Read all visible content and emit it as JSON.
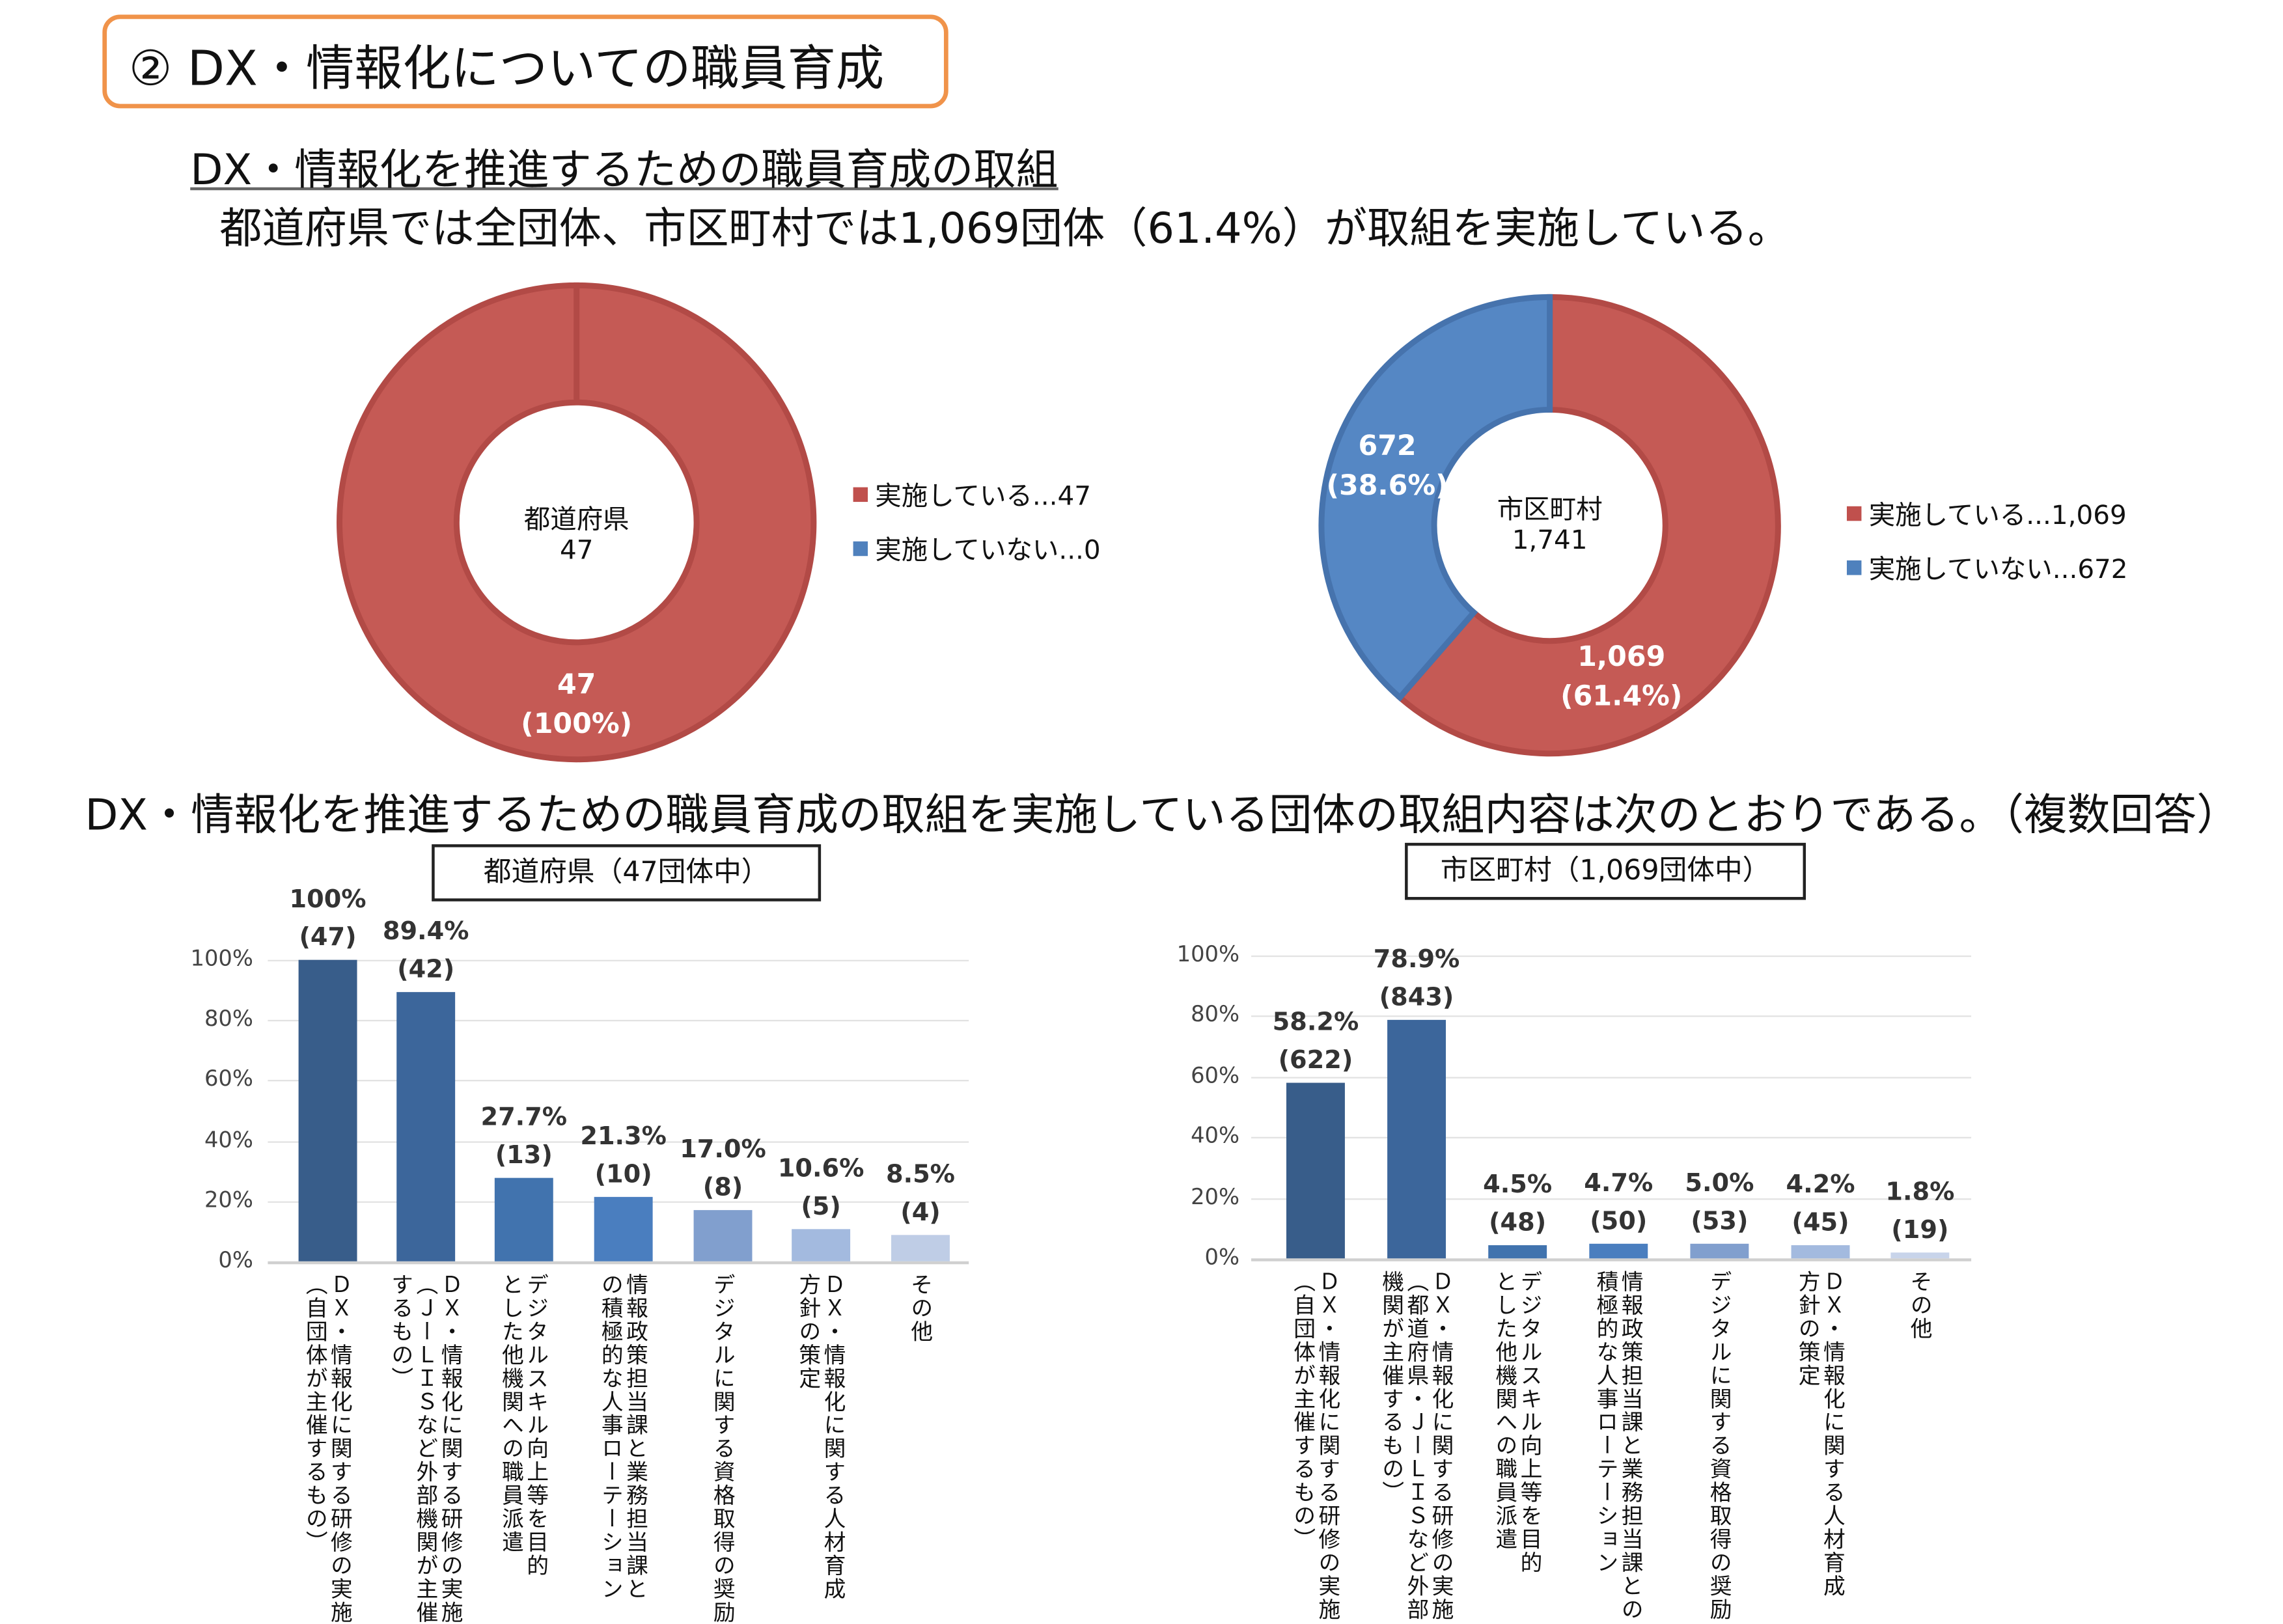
{
  "header": {
    "title": "② DX・情報化についての職員育成",
    "subtitle": "DX・情報化を推進するための職員育成の取組",
    "summary": "都道府県では全団体、市区町村では1,069団体（61.4%）が取組を実施している。",
    "sentence": "DX・情報化を推進するための職員育成の取組を実施している団体の取組内容は次のとおりである。（複数回答）"
  },
  "colors": {
    "accent": "#F0934A",
    "red": "#C0504D",
    "blue": "#4F81BD"
  },
  "chart_data": [
    {
      "type": "pie",
      "subtype": "donut",
      "center_label": "都道府県",
      "center_value": "47",
      "slices": [
        {
          "name": "実施している",
          "value": 47,
          "percent": 100,
          "color": "#C0504D",
          "label_value": "47",
          "label_pct": "(100%)",
          "legend": "実施している...47"
        },
        {
          "name": "実施していない",
          "value": 0,
          "percent": 0,
          "color": "#4F81BD",
          "label_value": "",
          "label_pct": "",
          "legend": "実施していない...0"
        }
      ],
      "legend_position": "right"
    },
    {
      "type": "pie",
      "subtype": "donut",
      "center_label": "市区町村",
      "center_value": "1,741",
      "slices": [
        {
          "name": "実施している",
          "value": 1069,
          "percent": 61.4,
          "color": "#C0504D",
          "label_value": "1,069",
          "label_pct": "(61.4%)",
          "legend": "実施している...1,069"
        },
        {
          "name": "実施していない",
          "value": 672,
          "percent": 38.6,
          "color": "#4F81BD",
          "label_value": "672",
          "label_pct": "(38.6%)",
          "legend": "実施していない...672"
        }
      ],
      "legend_position": "right"
    },
    {
      "type": "bar",
      "title": "都道府県（47団体中）",
      "ylim": [
        0,
        100
      ],
      "yticks": [
        "0%",
        "20%",
        "40%",
        "60%",
        "80%",
        "100%"
      ],
      "categories": [
        "ＤＸ・情報化に関する研修の実施\n（自団体が主催するもの）",
        "ＤＸ・情報化に関する研修の実施\n（ＪーＬＩＳなど外部機関が主催\nするもの）",
        "デジタルスキル向上等を目的\nとした他機関への職員派遣",
        "情報政策担当課と業務担当課と\nの積極的な人事ローテーション",
        "デジタルに関する資格取得の奨励",
        "ＤＸ・情報化に関する人材育成\n方針の策定",
        "その他"
      ],
      "values": [
        100,
        89.4,
        27.7,
        21.3,
        17.0,
        10.6,
        8.5
      ],
      "pct_labels": [
        "100%",
        "89.4%",
        "27.7%",
        "21.3%",
        "17.0%",
        "10.6%",
        "8.5%"
      ],
      "count_labels": [
        "(47)",
        "(42)",
        "(13)",
        "(10)",
        "(8)",
        "(5)",
        "(4)"
      ],
      "colors": [
        "#385D8A",
        "#3C669B",
        "#4173AE",
        "#4A7EBF",
        "#819FCE",
        "#A3BADF",
        "#BFCDE6"
      ],
      "grid": true
    },
    {
      "type": "bar",
      "title": "市区町村（1,069団体中）",
      "ylim": [
        0,
        100
      ],
      "yticks": [
        "0%",
        "20%",
        "40%",
        "60%",
        "80%",
        "100%"
      ],
      "categories": [
        "ＤＸ・情報化に関する研修の実施\n（自団体が主催するもの）",
        "ＤＸ・情報化に関する研修の実施\n（都道府県・ＪーＬＩＳなど外部\n機関が主催するもの）",
        "デジタルスキル向上等を目的\nとした他機関への職員派遣",
        "情報政策担当課と業務担当課との\n積極的な人事ローテーション",
        "デジタルに関する資格取得の奨励",
        "ＤＸ・情報化に関する人材育成\n方針の策定",
        "その他"
      ],
      "values": [
        58.2,
        78.9,
        4.5,
        4.7,
        5.0,
        4.2,
        1.8
      ],
      "pct_labels": [
        "58.2%",
        "78.9%",
        "4.5%",
        "4.7%",
        "5.0%",
        "4.2%",
        "1.8%"
      ],
      "count_labels": [
        "(622)",
        "(843)",
        "(48)",
        "(50)",
        "(53)",
        "(45)",
        "(19)"
      ],
      "colors": [
        "#385D8A",
        "#3C669B",
        "#4173AE",
        "#4A7EBF",
        "#819FCE",
        "#A3BADF",
        "#C8D4EA"
      ],
      "grid": true
    }
  ]
}
